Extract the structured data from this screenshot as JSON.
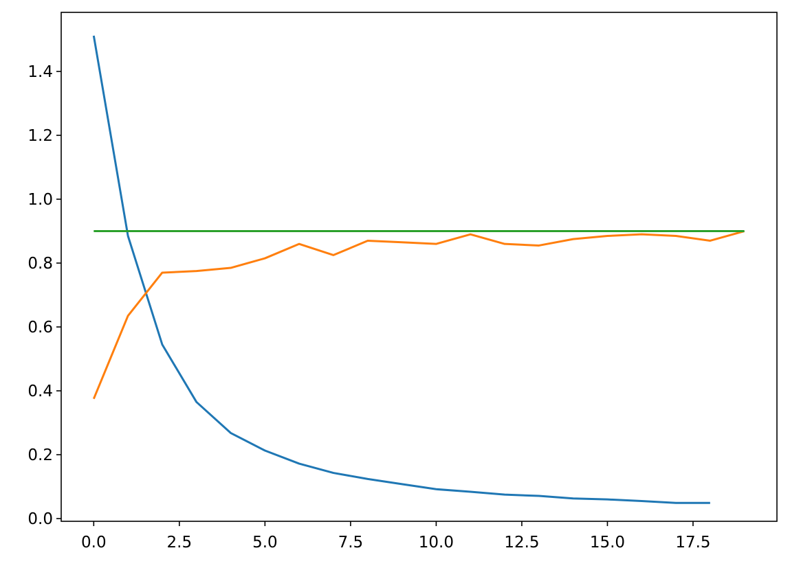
{
  "chart_data": {
    "type": "line",
    "title": "",
    "xlabel": "",
    "ylabel": "",
    "xlim": [
      -0.95,
      19.95
    ],
    "ylim": [
      -0.0085,
      1.585
    ],
    "x_ticks": [
      0,
      2.5,
      5,
      7.5,
      10,
      12.5,
      15,
      17.5
    ],
    "x_tick_labels": [
      "0.0",
      "2.5",
      "5.0",
      "7.5",
      "10.0",
      "12.5",
      "15.0",
      "17.5"
    ],
    "y_ticks": [
      0,
      0.2,
      0.4,
      0.6,
      0.8,
      1.0,
      1.2,
      1.4
    ],
    "y_tick_labels": [
      "0.0",
      "0.2",
      "0.4",
      "0.6",
      "0.8",
      "1.0",
      "1.2",
      "1.4"
    ],
    "grid": false,
    "legend": "none",
    "series": [
      {
        "color": "#1f77b4",
        "x": [
          0,
          1,
          2,
          3,
          4,
          5,
          6,
          7,
          8,
          9,
          10,
          11,
          12,
          13,
          14,
          15,
          16,
          17,
          18
        ],
        "values": [
          1.512,
          0.885,
          0.545,
          0.365,
          0.268,
          0.213,
          0.172,
          0.143,
          0.124,
          0.108,
          0.092,
          0.084,
          0.075,
          0.071,
          0.063,
          0.06,
          0.055,
          0.049,
          0.049
        ]
      },
      {
        "color": "#ff7f0e",
        "x": [
          0,
          1,
          2,
          3,
          4,
          5,
          6,
          7,
          8,
          9,
          10,
          11,
          12,
          13,
          14,
          15,
          16,
          17,
          18,
          19
        ],
        "values": [
          0.375,
          0.635,
          0.77,
          0.775,
          0.785,
          0.815,
          0.86,
          0.825,
          0.87,
          0.865,
          0.86,
          0.89,
          0.86,
          0.855,
          0.875,
          0.885,
          0.89,
          0.885,
          0.87,
          0.9
        ]
      },
      {
        "color": "#2ca02c",
        "x": [
          0,
          19
        ],
        "values": [
          0.9,
          0.9
        ]
      }
    ]
  }
}
